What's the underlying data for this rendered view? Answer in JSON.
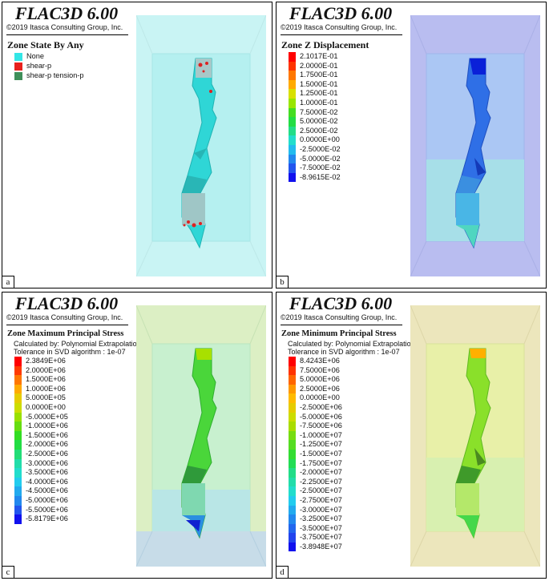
{
  "brand": "FLAC3D 6.00",
  "copyright": "©2019 Itasca Consulting Group, Inc.",
  "calc_by": "Calculated by: Polynomial Extrapolation",
  "tolerance": "Tolerance in SVD algorithm : 1e-07",
  "panels": {
    "a": {
      "letter": "a",
      "title": "Zone State By Any",
      "legend": [
        {
          "label": "None",
          "color": "#33e6e6"
        },
        {
          "label": "shear-p",
          "color": "#e8221e"
        },
        {
          "label": "shear-p tension-p",
          "color": "#3f8f5a"
        }
      ]
    },
    "b": {
      "letter": "b",
      "title": "Zone Z Displacement",
      "legend": [
        {
          "label": "2.1017E-01",
          "color": "#ff0000"
        },
        {
          "label": "2.0000E-01",
          "color": "#ff3300"
        },
        {
          "label": "1.7500E-01",
          "color": "#ff7700"
        },
        {
          "label": "1.5000E-01",
          "color": "#ffaa00"
        },
        {
          "label": "1.2500E-01",
          "color": "#d8e000"
        },
        {
          "label": "1.0000E-01",
          "color": "#99e600"
        },
        {
          "label": "7.5000E-02",
          "color": "#44dd22"
        },
        {
          "label": "5.0000E-02",
          "color": "#22dd44"
        },
        {
          "label": "2.5000E-02",
          "color": "#22dd88"
        },
        {
          "label": "0.0000E+00",
          "color": "#22ddcc"
        },
        {
          "label": "-2.5000E-02",
          "color": "#22bbee"
        },
        {
          "label": "-5.0000E-02",
          "color": "#2288ee"
        },
        {
          "label": "-7.5000E-02",
          "color": "#2255ee"
        },
        {
          "label": "-8.9615E-02",
          "color": "#1111ee"
        }
      ]
    },
    "c": {
      "letter": "c",
      "title": "Zone Maximum Principal Stress",
      "legend": [
        {
          "label": "2.3849E+06",
          "color": "#ff0000"
        },
        {
          "label": "2.0000E+06",
          "color": "#ff3a00"
        },
        {
          "label": "1.5000E+06",
          "color": "#ff7700"
        },
        {
          "label": "1.0000E+06",
          "color": "#ffaa00"
        },
        {
          "label": "5.0000E+05",
          "color": "#e6cc00"
        },
        {
          "label": "0.0000E+00",
          "color": "#ccdd00"
        },
        {
          "label": "-5.0000E+05",
          "color": "#99e000"
        },
        {
          "label": "-1.0000E+06",
          "color": "#66dd11"
        },
        {
          "label": "-1.5000E+06",
          "color": "#33dd22"
        },
        {
          "label": "-2.0000E+06",
          "color": "#22dd44"
        },
        {
          "label": "-2.5000E+06",
          "color": "#22dd77"
        },
        {
          "label": "-3.0000E+06",
          "color": "#22ddaa"
        },
        {
          "label": "-3.5000E+06",
          "color": "#22ddcc"
        },
        {
          "label": "-4.0000E+06",
          "color": "#22ccee"
        },
        {
          "label": "-4.5000E+06",
          "color": "#22aaee"
        },
        {
          "label": "-5.0000E+06",
          "color": "#2288ee"
        },
        {
          "label": "-5.5000E+06",
          "color": "#2255ee"
        },
        {
          "label": "-5.8179E+06",
          "color": "#1111ee"
        }
      ]
    },
    "d": {
      "letter": "d",
      "title": "Zone Minimum Principal Stress",
      "legend": [
        {
          "label": "8.4243E+06",
          "color": "#ff0000"
        },
        {
          "label": "7.5000E+06",
          "color": "#ff3300"
        },
        {
          "label": "5.0000E+06",
          "color": "#ff6600"
        },
        {
          "label": "2.5000E+06",
          "color": "#ff9900"
        },
        {
          "label": "0.0000E+00",
          "color": "#ffbb00"
        },
        {
          "label": "-2.5000E+06",
          "color": "#e6cc00"
        },
        {
          "label": "-5.0000E+06",
          "color": "#ccdd00"
        },
        {
          "label": "-7.5000E+06",
          "color": "#aadd00"
        },
        {
          "label": "-1.0000E+07",
          "color": "#77dd11"
        },
        {
          "label": "-1.2500E+07",
          "color": "#55dd22"
        },
        {
          "label": "-1.5000E+07",
          "color": "#33dd33"
        },
        {
          "label": "-1.7500E+07",
          "color": "#22dd55"
        },
        {
          "label": "-2.0000E+07",
          "color": "#22dd88"
        },
        {
          "label": "-2.2500E+07",
          "color": "#22ddaa"
        },
        {
          "label": "-2.5000E+07",
          "color": "#22ddcc"
        },
        {
          "label": "-2.7500E+07",
          "color": "#22ccee"
        },
        {
          "label": "-3.0000E+07",
          "color": "#22aaee"
        },
        {
          "label": "-3.2500E+07",
          "color": "#2288ee"
        },
        {
          "label": "-3.5000E+07",
          "color": "#2266ee"
        },
        {
          "label": "-3.7500E+07",
          "color": "#2244ee"
        },
        {
          "label": "-3.8948E+07",
          "color": "#1111ee"
        }
      ]
    }
  }
}
